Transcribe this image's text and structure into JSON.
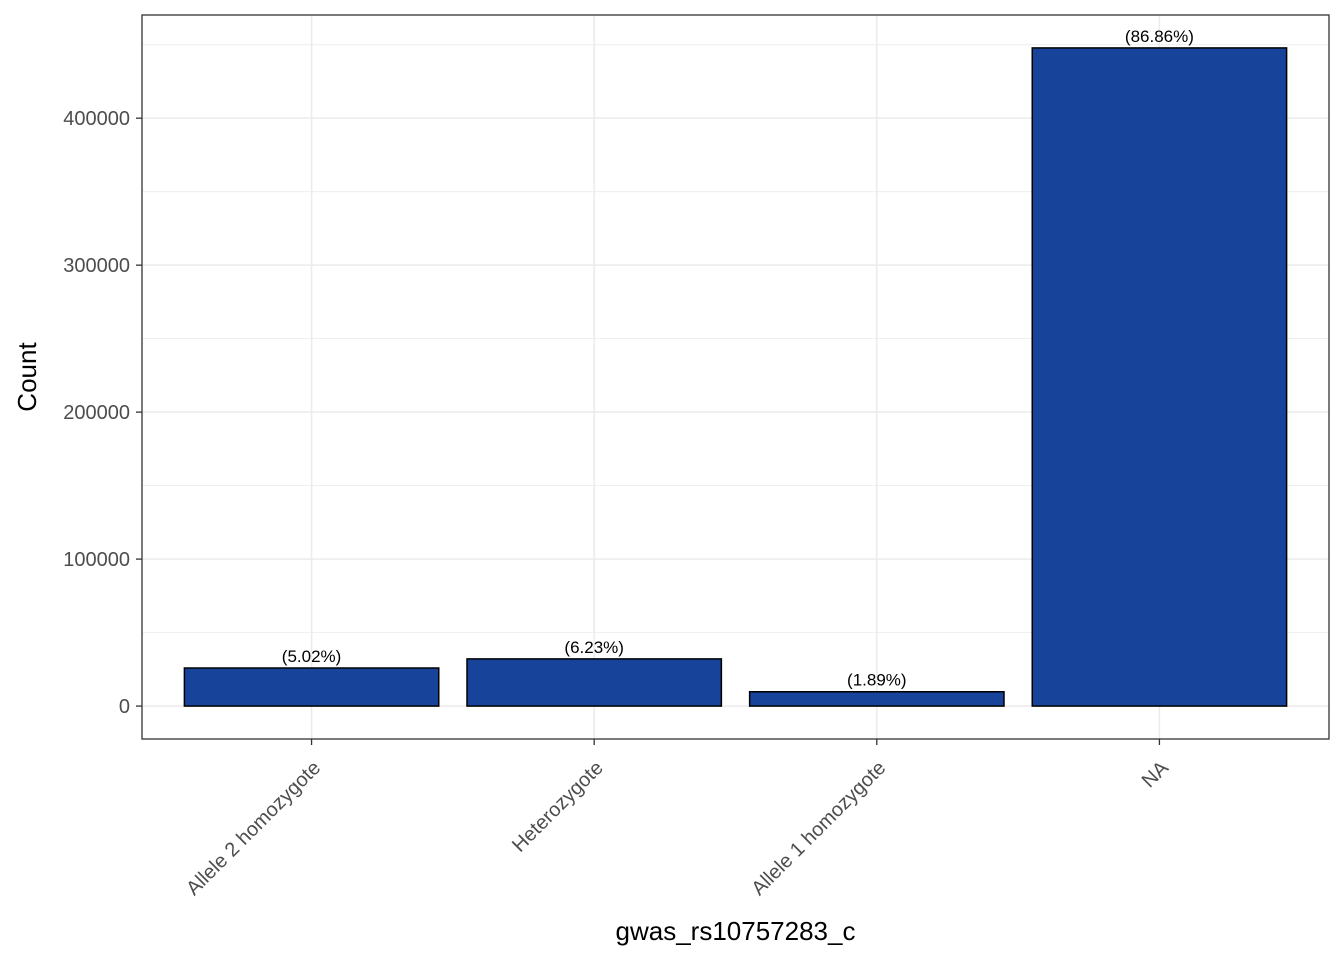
{
  "chart_data": {
    "type": "bar",
    "xlabel": "gwas_rs10757283_c",
    "ylabel": "Count",
    "categories": [
      "Allele 2 homozygote",
      "Heterozygote",
      "Allele 1 homozygote",
      "NA"
    ],
    "values": [
      25900,
      32100,
      9750,
      447800
    ],
    "bar_labels": [
      "(5.02%)",
      "(6.23%)",
      "(1.89%)",
      "(86.86%)"
    ],
    "yticks": [
      0,
      100000,
      200000,
      300000,
      400000
    ],
    "ytick_labels": [
      "0",
      "100000",
      "200000",
      "300000",
      "400000"
    ],
    "ylim": [
      -22400,
      470200
    ],
    "grid": true,
    "legend": "none",
    "colors": {
      "bar_fill": "#17439a",
      "bar_stroke": "#000000",
      "grid": "#ebebeb",
      "panel_border": "#333333"
    }
  }
}
